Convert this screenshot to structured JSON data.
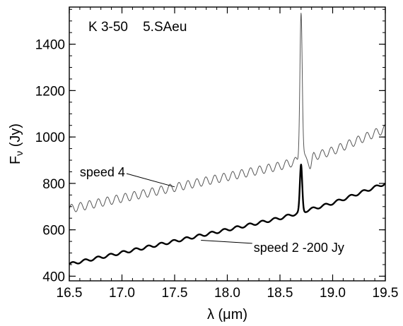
{
  "chart_data": {
    "type": "line",
    "title": "K 3-50    5.SAeu",
    "xlabel": "λ (μm)",
    "ylabel": "Fν (Jy)",
    "ylabel_main": "F",
    "ylabel_sub": "ν",
    "ylabel_unit": " (Jy)",
    "xlim": [
      16.5,
      19.5
    ],
    "ylim": [
      380,
      1560
    ],
    "x_ticks": [
      16.5,
      17.0,
      17.5,
      18.0,
      18.5,
      19.0,
      19.5
    ],
    "x_tick_labels": [
      "16.5",
      "17.0",
      "17.5",
      "18.0",
      "18.5",
      "19.0",
      "19.5"
    ],
    "y_ticks": [
      400,
      600,
      800,
      1000,
      1200,
      1400
    ],
    "y_tick_labels": [
      "400",
      "600",
      "800",
      "1000",
      "1200",
      "1400"
    ],
    "grid": false,
    "legend": "none",
    "series": [
      {
        "name": "speed 4",
        "style": "thin gray line with regular fringing ripple",
        "color": "#555555",
        "x": [
          16.5,
          17.0,
          17.5,
          18.0,
          18.5,
          18.65,
          18.7,
          18.75,
          19.0,
          19.5
        ],
        "y": [
          690,
          735,
          782,
          830,
          875,
          890,
          1540,
          900,
          940,
          1035
        ]
      },
      {
        "name": "speed 2 -200 Jy",
        "style": "thick black line with small ripple",
        "color": "#000000",
        "x": [
          16.5,
          17.0,
          17.5,
          18.0,
          18.5,
          18.65,
          18.7,
          18.75,
          19.0,
          19.5
        ],
        "y": [
          452,
          500,
          545,
          600,
          650,
          680,
          880,
          680,
          715,
          800
        ]
      }
    ],
    "annotations": [
      {
        "text": "speed 4",
        "label_x": 16.6,
        "label_y": 830,
        "arrow_to_x": 17.5,
        "arrow_to_y": 785
      },
      {
        "text": "speed 2 -200 Jy",
        "label_x": 18.25,
        "label_y": 505,
        "arrow_to_x": 17.75,
        "arrow_to_y": 555
      }
    ]
  }
}
